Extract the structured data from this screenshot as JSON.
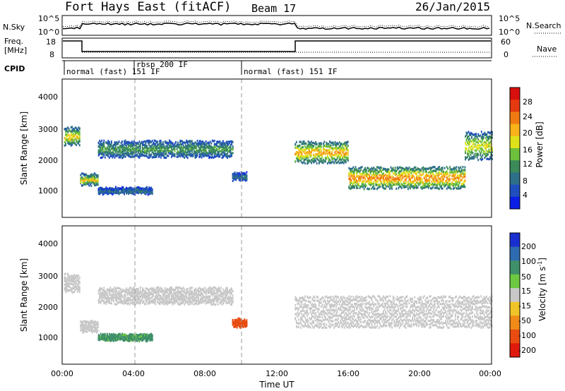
{
  "header": {
    "station": "Fort Hays East (fitACF)",
    "beam": "Beam 17",
    "date": "26/Jan/2015"
  },
  "noise_panel": {
    "left_label": "N.Sky",
    "right_label": "N.Search",
    "left_ticks": [
      "10^5",
      "10^0"
    ],
    "right_ticks": [
      "10^5",
      "10^0"
    ]
  },
  "freq_panel": {
    "left_label_line1": "Freq.",
    "left_label_line2": "[MHz]",
    "left_ticks": [
      "18",
      "8"
    ],
    "right_ticks": [
      "60",
      "0"
    ],
    "right_label": "Nave"
  },
  "cpid_panel": {
    "label": "CPID",
    "segments": [
      {
        "text": "normal (fast) 151 IF",
        "start_hour": 0.0
      },
      {
        "text": "rbsp 200 IF",
        "start_hour": 4.0
      },
      {
        "text": "normal (fast) 151 IF",
        "start_hour": 10.0
      }
    ],
    "change_hours": [
      0.0,
      4.0,
      10.0
    ]
  },
  "power_panel": {
    "ylabel": "Slant Range [km]",
    "yticks": [
      "1000",
      "2000",
      "3000",
      "4000"
    ],
    "colorbar_label": "Power [dB]",
    "colorbar_ticks": [
      "4",
      "8",
      "12",
      "16",
      "20",
      "24",
      "28"
    ],
    "colors": [
      "#0a1ee6",
      "#1f4fbf",
      "#2e6f8a",
      "#3a8a5a",
      "#6cc03c",
      "#dfe21a",
      "#f8b21a",
      "#f07a12",
      "#e53a10",
      "#d8100e"
    ]
  },
  "velocity_panel": {
    "ylabel": "Slant Range [km]",
    "yticks": [
      "1000",
      "2000",
      "3000",
      "4000"
    ],
    "colorbar_label": "Velocity [m s",
    "colorbar_label_sup": "-1",
    "colorbar_label_end": "]",
    "colorbar_ticks": [
      "200",
      "100",
      "50",
      "15",
      "-15",
      "-50",
      "-100",
      "-200"
    ],
    "colors": [
      "#1a2fd0",
      "#2e6bb0",
      "#3f8f6a",
      "#6cc840",
      "#c8c8c8",
      "#f0c428",
      "#f08a18",
      "#e84c10",
      "#e01a0c"
    ]
  },
  "x_axis": {
    "label": "Time UT",
    "ticks": [
      "00:00",
      "04:00",
      "08:00",
      "12:00",
      "16:00",
      "20:00",
      "00:00"
    ]
  },
  "chart_data": [
    {
      "type": "heatmap",
      "title": "Power",
      "xlabel": "Time UT",
      "ylabel": "Slant Range [km]",
      "xlim_hours": [
        0,
        24
      ],
      "ylim_km": [
        180,
        4500
      ],
      "colorbar": {
        "label": "Power [dB]",
        "range": [
          0,
          30
        ]
      },
      "echo_bands": [
        {
          "t_start": 0.1,
          "t_end": 1.0,
          "range_center_km": 2700,
          "width_km": 500,
          "power_db": 20
        },
        {
          "t_start": 1.0,
          "t_end": 2.0,
          "range_center_km": 1350,
          "width_km": 300,
          "power_db": 20
        },
        {
          "t_start": 2.0,
          "t_end": 9.5,
          "range_center_km": 2300,
          "width_km": 450,
          "power_db": 12
        },
        {
          "t_start": 2.0,
          "t_end": 5.0,
          "range_center_km": 1000,
          "width_km": 150,
          "power_db": 8
        },
        {
          "t_start": 9.5,
          "t_end": 10.3,
          "range_center_km": 1450,
          "width_km": 200,
          "power_db": 8
        },
        {
          "t_start": 13.0,
          "t_end": 16.0,
          "range_center_km": 2200,
          "width_km": 600,
          "power_db": 22
        },
        {
          "t_start": 16.0,
          "t_end": 22.5,
          "range_center_km": 1400,
          "width_km": 600,
          "power_db": 24
        },
        {
          "t_start": 22.5,
          "t_end": 24.0,
          "range_center_km": 2400,
          "width_km": 800,
          "power_db": 18
        }
      ]
    },
    {
      "type": "heatmap",
      "title": "Velocity",
      "xlabel": "Time UT",
      "ylabel": "Slant Range [km]",
      "xlim_hours": [
        0,
        24
      ],
      "ylim_km": [
        180,
        4500
      ],
      "colorbar": {
        "label": "Velocity [m s-1]",
        "range": [
          -250,
          250
        ]
      },
      "echo_bands": [
        {
          "t_start": 0.1,
          "t_end": 1.0,
          "range_center_km": 2700,
          "width_km": 500,
          "velocity": 0
        },
        {
          "t_start": 1.0,
          "t_end": 2.0,
          "range_center_km": 1350,
          "width_km": 300,
          "velocity": 0
        },
        {
          "t_start": 2.0,
          "t_end": 9.5,
          "range_center_km": 2300,
          "width_km": 450,
          "velocity": 0
        },
        {
          "t_start": 2.0,
          "t_end": 5.0,
          "range_center_km": 1000,
          "width_km": 150,
          "velocity": 40
        },
        {
          "t_start": 9.5,
          "t_end": 10.3,
          "range_center_km": 1450,
          "width_km": 200,
          "velocity": -120
        },
        {
          "t_start": 13.0,
          "t_end": 24.0,
          "range_center_km": 1800,
          "width_km": 900,
          "velocity": 0
        }
      ]
    }
  ]
}
